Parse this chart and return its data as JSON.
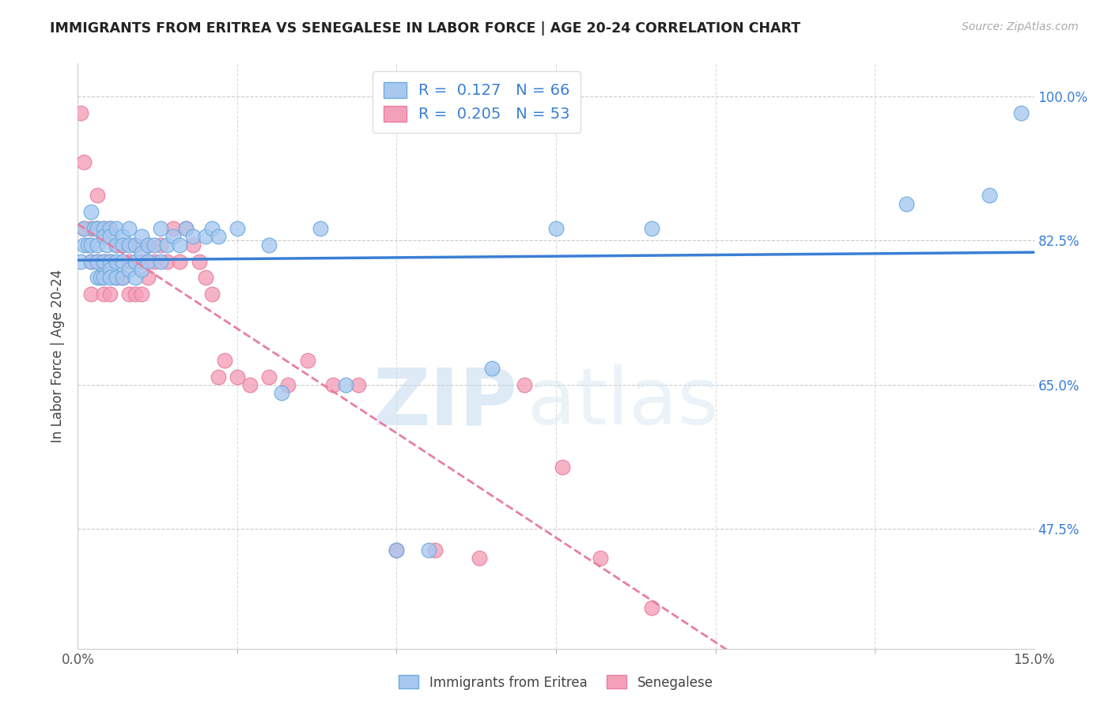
{
  "title": "IMMIGRANTS FROM ERITREA VS SENEGALESE IN LABOR FORCE | AGE 20-24 CORRELATION CHART",
  "source": "Source: ZipAtlas.com",
  "ylabel": "In Labor Force | Age 20-24",
  "ytick_labels": [
    "100.0%",
    "82.5%",
    "65.0%",
    "47.5%"
  ],
  "ytick_values": [
    1.0,
    0.825,
    0.65,
    0.475
  ],
  "xmin": 0.0,
  "xmax": 0.15,
  "ymin": 0.33,
  "ymax": 1.04,
  "watermark_zip": "ZIP",
  "watermark_atlas": "atlas",
  "color_blue": "#A8C8F0",
  "color_pink": "#F4A0B8",
  "line_blue": "#3A7FD5",
  "line_pink": "#E87EA0",
  "eritrea_x": [
    0.0005,
    0.001,
    0.001,
    0.0015,
    0.002,
    0.002,
    0.002,
    0.0025,
    0.003,
    0.003,
    0.003,
    0.003,
    0.0035,
    0.004,
    0.004,
    0.004,
    0.004,
    0.0045,
    0.005,
    0.005,
    0.005,
    0.005,
    0.005,
    0.006,
    0.006,
    0.006,
    0.006,
    0.007,
    0.007,
    0.007,
    0.007,
    0.008,
    0.008,
    0.008,
    0.009,
    0.009,
    0.009,
    0.01,
    0.01,
    0.01,
    0.011,
    0.011,
    0.012,
    0.013,
    0.013,
    0.014,
    0.015,
    0.016,
    0.017,
    0.018,
    0.02,
    0.021,
    0.022,
    0.025,
    0.03,
    0.032,
    0.038,
    0.042,
    0.05,
    0.055,
    0.065,
    0.075,
    0.09,
    0.13,
    0.143,
    0.148
  ],
  "eritrea_y": [
    0.8,
    0.84,
    0.82,
    0.82,
    0.86,
    0.82,
    0.8,
    0.84,
    0.84,
    0.82,
    0.8,
    0.78,
    0.78,
    0.84,
    0.83,
    0.8,
    0.78,
    0.82,
    0.84,
    0.83,
    0.8,
    0.79,
    0.78,
    0.84,
    0.82,
    0.8,
    0.78,
    0.83,
    0.82,
    0.8,
    0.78,
    0.84,
    0.82,
    0.79,
    0.82,
    0.8,
    0.78,
    0.83,
    0.81,
    0.79,
    0.82,
    0.8,
    0.82,
    0.84,
    0.8,
    0.82,
    0.83,
    0.82,
    0.84,
    0.83,
    0.83,
    0.84,
    0.83,
    0.84,
    0.82,
    0.64,
    0.84,
    0.65,
    0.45,
    0.45,
    0.67,
    0.84,
    0.84,
    0.87,
    0.88,
    0.98
  ],
  "senegal_x": [
    0.0005,
    0.001,
    0.001,
    0.002,
    0.002,
    0.002,
    0.003,
    0.003,
    0.003,
    0.004,
    0.004,
    0.004,
    0.005,
    0.005,
    0.005,
    0.006,
    0.006,
    0.007,
    0.007,
    0.008,
    0.008,
    0.009,
    0.009,
    0.01,
    0.01,
    0.011,
    0.011,
    0.012,
    0.013,
    0.014,
    0.015,
    0.016,
    0.017,
    0.018,
    0.019,
    0.02,
    0.021,
    0.022,
    0.023,
    0.025,
    0.027,
    0.03,
    0.033,
    0.036,
    0.04,
    0.044,
    0.05,
    0.056,
    0.063,
    0.07,
    0.076,
    0.082,
    0.09
  ],
  "senegal_y": [
    0.98,
    0.92,
    0.84,
    0.84,
    0.8,
    0.76,
    0.88,
    0.84,
    0.8,
    0.84,
    0.8,
    0.76,
    0.84,
    0.8,
    0.76,
    0.82,
    0.78,
    0.82,
    0.78,
    0.8,
    0.76,
    0.82,
    0.76,
    0.8,
    0.76,
    0.82,
    0.78,
    0.8,
    0.82,
    0.8,
    0.84,
    0.8,
    0.84,
    0.82,
    0.8,
    0.78,
    0.76,
    0.66,
    0.68,
    0.66,
    0.65,
    0.66,
    0.65,
    0.68,
    0.65,
    0.65,
    0.45,
    0.45,
    0.44,
    0.65,
    0.55,
    0.44,
    0.38
  ]
}
